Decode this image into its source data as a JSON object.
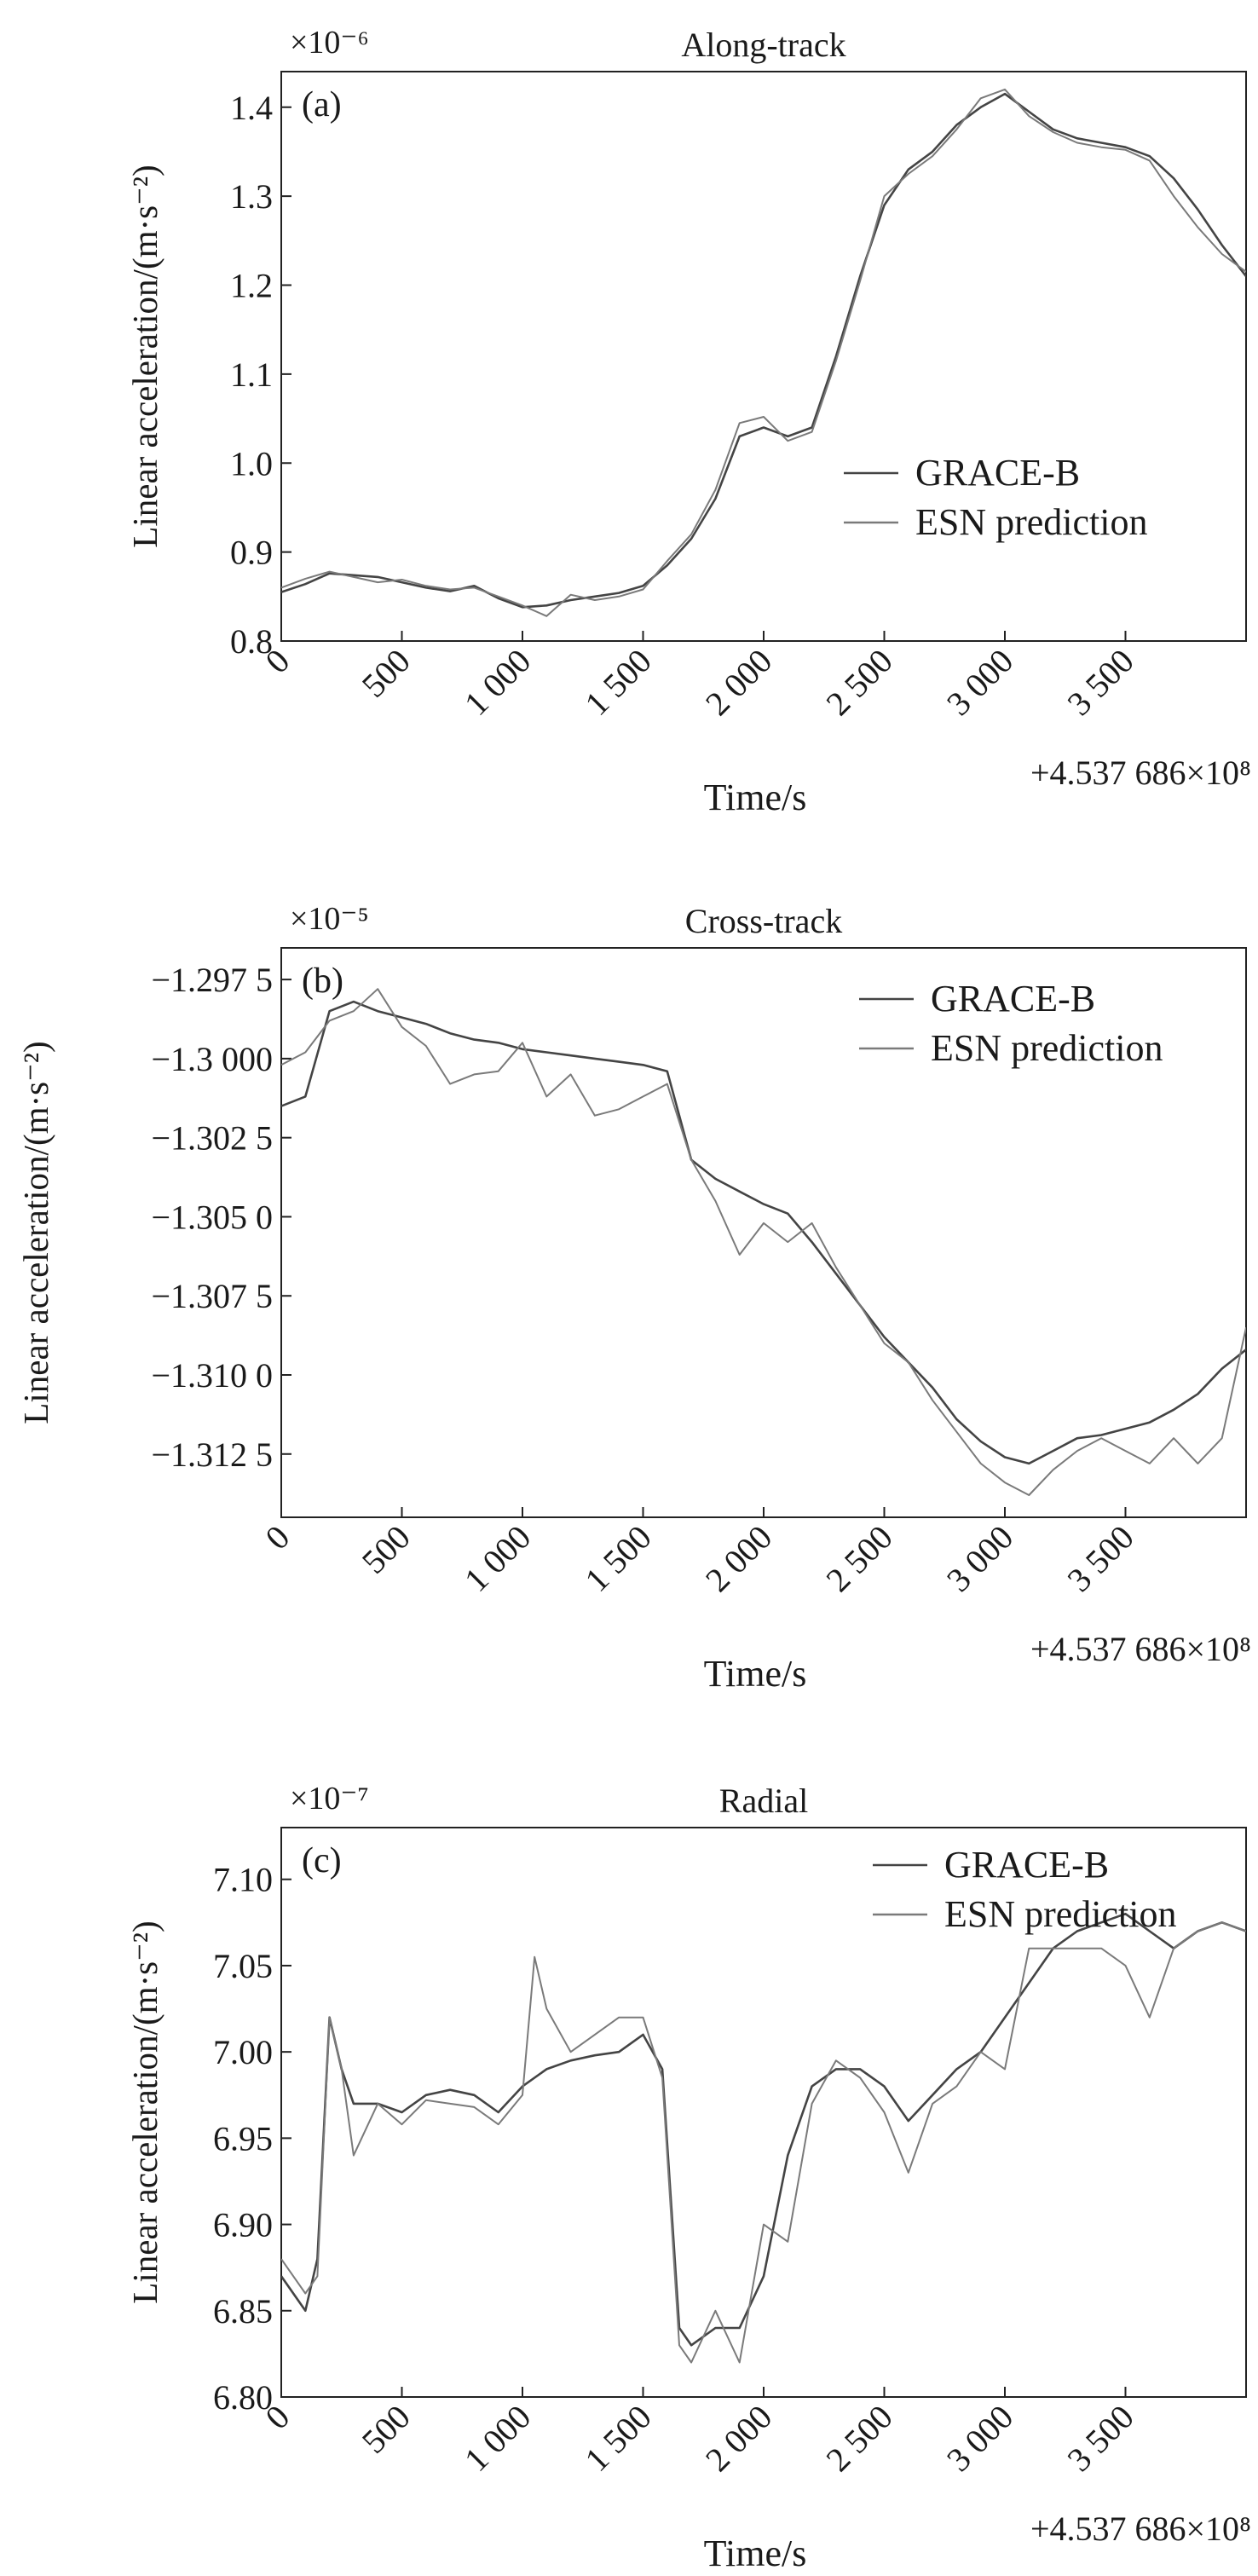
{
  "chart_data": [
    {
      "type": "line",
      "panel_label": "(a)",
      "title": "Along-track",
      "ylabel": "Linear acceleration/(m·s⁻²)",
      "xlabel": "Time/s",
      "scale": "×10⁻⁶",
      "x_offset": "+4.537 686×10⁸",
      "xlim": [
        0,
        4000
      ],
      "ylim": [
        0.8,
        1.44
      ],
      "xticks": [
        0,
        500,
        1000,
        1500,
        2000,
        2500,
        3000,
        3500
      ],
      "xtick_labels": [
        "0",
        "500",
        "1 000",
        "1 500",
        "2 000",
        "2 500",
        "3 000",
        "3 500"
      ],
      "yticks": [
        0.8,
        0.9,
        1.0,
        1.1,
        1.2,
        1.3,
        1.4
      ],
      "ytick_labels": [
        "0.8",
        "0.9",
        "1.0",
        "1.1",
        "1.2",
        "1.3",
        "1.4"
      ],
      "legend": {
        "position": "center-right",
        "entries": [
          "GRACE-B",
          "ESN prediction"
        ]
      },
      "series": [
        {
          "name": "GRACE-B",
          "color": "#444444",
          "x": [
            0,
            100,
            200,
            300,
            400,
            500,
            600,
            700,
            800,
            900,
            1000,
            1100,
            1200,
            1300,
            1400,
            1500,
            1600,
            1700,
            1800,
            1900,
            2000,
            2100,
            2200,
            2300,
            2400,
            2500,
            2600,
            2700,
            2800,
            2900,
            3000,
            3100,
            3200,
            3300,
            3400,
            3500,
            3600,
            3700,
            3800,
            3900,
            4000
          ],
          "y": [
            0.855,
            0.864,
            0.876,
            0.874,
            0.872,
            0.866,
            0.86,
            0.856,
            0.862,
            0.848,
            0.838,
            0.84,
            0.846,
            0.85,
            0.854,
            0.862,
            0.885,
            0.915,
            0.96,
            1.03,
            1.04,
            1.03,
            1.04,
            1.12,
            1.21,
            1.29,
            1.33,
            1.35,
            1.38,
            1.4,
            1.415,
            1.395,
            1.375,
            1.365,
            1.36,
            1.355,
            1.345,
            1.32,
            1.285,
            1.245,
            1.21
          ]
        },
        {
          "name": "ESN prediction",
          "color": "#7a7a7a",
          "x": [
            0,
            100,
            200,
            300,
            400,
            500,
            600,
            700,
            800,
            900,
            1000,
            1100,
            1200,
            1300,
            1400,
            1500,
            1600,
            1700,
            1800,
            1900,
            2000,
            2100,
            2200,
            2300,
            2400,
            2500,
            2600,
            2700,
            2800,
            2900,
            3000,
            3100,
            3200,
            3300,
            3400,
            3500,
            3600,
            3700,
            3800,
            3900,
            4000
          ],
          "y": [
            0.86,
            0.87,
            0.878,
            0.872,
            0.866,
            0.869,
            0.862,
            0.858,
            0.86,
            0.85,
            0.84,
            0.828,
            0.852,
            0.846,
            0.85,
            0.858,
            0.89,
            0.92,
            0.97,
            1.045,
            1.052,
            1.025,
            1.035,
            1.115,
            1.205,
            1.3,
            1.325,
            1.345,
            1.375,
            1.41,
            1.42,
            1.39,
            1.372,
            1.36,
            1.355,
            1.352,
            1.34,
            1.3,
            1.265,
            1.235,
            1.215
          ]
        }
      ]
    },
    {
      "type": "line",
      "panel_label": "(b)",
      "title": "Cross-track",
      "ylabel": "Linear acceleration/(m·s⁻²)",
      "xlabel": "Time/s",
      "scale": "×10⁻⁵",
      "x_offset": "+4.537 686×10⁸",
      "xlim": [
        0,
        4000
      ],
      "ylim": [
        -1.3145,
        -1.2965
      ],
      "xticks": [
        0,
        500,
        1000,
        1500,
        2000,
        2500,
        3000,
        3500
      ],
      "xtick_labels": [
        "0",
        "500",
        "1 000",
        "1 500",
        "2 000",
        "2 500",
        "3 000",
        "3 500"
      ],
      "yticks": [
        -1.3125,
        -1.31,
        -1.3075,
        -1.305,
        -1.3025,
        -1.3,
        -1.2975
      ],
      "ytick_labels": [
        "−1.312 5",
        "−1.310 0",
        "−1.307 5",
        "−1.305 0",
        "−1.302 5",
        "−1.3 000",
        "−1.297 5"
      ],
      "legend": {
        "position": "top-right",
        "entries": [
          "GRACE-B",
          "ESN prediction"
        ]
      },
      "series": [
        {
          "name": "GRACE-B",
          "color": "#444444",
          "x": [
            0,
            100,
            200,
            300,
            400,
            500,
            600,
            700,
            800,
            900,
            1000,
            1100,
            1200,
            1300,
            1400,
            1500,
            1600,
            1700,
            1800,
            1900,
            2000,
            2100,
            2200,
            2300,
            2400,
            2500,
            2600,
            2700,
            2800,
            2900,
            3000,
            3100,
            3200,
            3300,
            3400,
            3500,
            3600,
            3700,
            3800,
            3900,
            4000
          ],
          "y": [
            -1.3015,
            -1.3012,
            -1.2985,
            -1.2982,
            -1.2985,
            -1.2987,
            -1.2989,
            -1.2992,
            -1.2994,
            -1.2995,
            -1.2997,
            -1.2998,
            -1.2999,
            -1.3,
            -1.3001,
            -1.3002,
            -1.3004,
            -1.3032,
            -1.3038,
            -1.3042,
            -1.3046,
            -1.3049,
            -1.3058,
            -1.3068,
            -1.3078,
            -1.3088,
            -1.3096,
            -1.3104,
            -1.3114,
            -1.3121,
            -1.3126,
            -1.3128,
            -1.3124,
            -1.312,
            -1.3119,
            -1.3117,
            -1.3115,
            -1.3111,
            -1.3106,
            -1.3098,
            -1.3092
          ]
        },
        {
          "name": "ESN prediction",
          "color": "#7a7a7a",
          "x": [
            0,
            100,
            200,
            300,
            400,
            500,
            600,
            700,
            800,
            900,
            1000,
            1100,
            1200,
            1300,
            1400,
            1500,
            1600,
            1700,
            1800,
            1900,
            2000,
            2100,
            2200,
            2300,
            2400,
            2500,
            2600,
            2700,
            2800,
            2900,
            3000,
            3100,
            3200,
            3300,
            3400,
            3500,
            3600,
            3700,
            3800,
            3900,
            4000
          ],
          "y": [
            -1.3002,
            -1.2998,
            -1.2988,
            -1.2985,
            -1.2978,
            -1.299,
            -1.2996,
            -1.3008,
            -1.3005,
            -1.3004,
            -1.2995,
            -1.3012,
            -1.3005,
            -1.3018,
            -1.3016,
            -1.3012,
            -1.3008,
            -1.3032,
            -1.3045,
            -1.3062,
            -1.3052,
            -1.3058,
            -1.3052,
            -1.3066,
            -1.3078,
            -1.309,
            -1.3096,
            -1.3108,
            -1.3118,
            -1.3128,
            -1.3134,
            -1.3138,
            -1.313,
            -1.3124,
            -1.312,
            -1.3124,
            -1.3128,
            -1.312,
            -1.3128,
            -1.312,
            -1.3085
          ]
        }
      ]
    },
    {
      "type": "line",
      "panel_label": "(c)",
      "title": "Radial",
      "ylabel": "Linear acceleration/(m·s⁻²)",
      "xlabel": "Time/s",
      "scale": "×10⁻⁷",
      "x_offset": "+4.537 686×10⁸",
      "xlim": [
        0,
        4000
      ],
      "ylim": [
        6.8,
        7.13
      ],
      "xticks": [
        0,
        500,
        1000,
        1500,
        2000,
        2500,
        3000,
        3500
      ],
      "xtick_labels": [
        "0",
        "500",
        "1 000",
        "1 500",
        "2 000",
        "2 500",
        "3 000",
        "3 500"
      ],
      "yticks": [
        6.8,
        6.85,
        6.9,
        6.95,
        7.0,
        7.05,
        7.1
      ],
      "ytick_labels": [
        "6.80",
        "6.85",
        "6.90",
        "6.95",
        "7.00",
        "7.05",
        "7.10"
      ],
      "legend": {
        "position": "top-right",
        "entries": [
          "GRACE-B",
          "ESN prediction"
        ]
      },
      "series": [
        {
          "name": "GRACE-B",
          "color": "#444444",
          "x": [
            0,
            100,
            150,
            200,
            250,
            300,
            400,
            500,
            600,
            700,
            800,
            900,
            1000,
            1100,
            1200,
            1300,
            1400,
            1500,
            1580,
            1650,
            1700,
            1800,
            1900,
            2000,
            2100,
            2200,
            2300,
            2400,
            2500,
            2600,
            2700,
            2800,
            2900,
            3000,
            3100,
            3200,
            3300,
            3400,
            3500,
            3600,
            3700,
            3800,
            3900,
            4000
          ],
          "y": [
            6.87,
            6.85,
            6.88,
            7.02,
            6.99,
            6.97,
            6.97,
            6.965,
            6.975,
            6.978,
            6.975,
            6.965,
            6.98,
            6.99,
            6.995,
            6.998,
            7.0,
            7.01,
            6.99,
            6.84,
            6.83,
            6.84,
            6.84,
            6.87,
            6.94,
            6.98,
            6.99,
            6.99,
            6.98,
            6.96,
            6.975,
            6.99,
            7.0,
            7.02,
            7.04,
            7.06,
            7.07,
            7.075,
            7.08,
            7.07,
            7.06,
            7.07,
            7.075,
            7.07
          ]
        },
        {
          "name": "ESN prediction",
          "color": "#7a7a7a",
          "x": [
            0,
            100,
            150,
            200,
            250,
            300,
            400,
            500,
            600,
            700,
            800,
            900,
            1000,
            1050,
            1100,
            1200,
            1300,
            1400,
            1500,
            1580,
            1650,
            1700,
            1800,
            1900,
            2000,
            2100,
            2200,
            2300,
            2400,
            2500,
            2600,
            2700,
            2800,
            2900,
            3000,
            3100,
            3200,
            3300,
            3400,
            3500,
            3600,
            3700,
            3800,
            3900,
            4000
          ],
          "y": [
            6.88,
            6.86,
            6.87,
            7.02,
            6.99,
            6.94,
            6.97,
            6.958,
            6.972,
            6.97,
            6.968,
            6.958,
            6.975,
            7.055,
            7.025,
            7.0,
            7.01,
            7.02,
            7.02,
            6.985,
            6.83,
            6.82,
            6.85,
            6.82,
            6.9,
            6.89,
            6.97,
            6.995,
            6.985,
            6.965,
            6.93,
            6.97,
            6.98,
            7.0,
            6.99,
            7.06,
            7.06,
            7.06,
            7.06,
            7.05,
            7.02,
            7.06,
            7.07,
            7.075,
            7.07
          ]
        }
      ]
    }
  ]
}
